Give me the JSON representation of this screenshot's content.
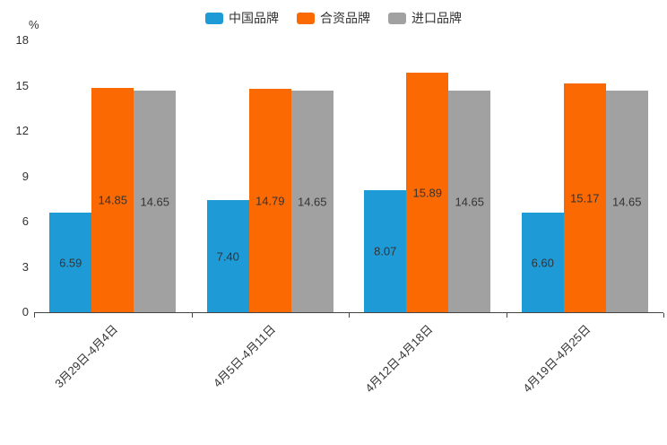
{
  "chart_data": {
    "type": "bar",
    "categories": [
      "3月29日-4月4日",
      "4月5日-4月11日",
      "4月12日-4月18日",
      "4月19日-4月25日"
    ],
    "series": [
      {
        "name": "中国品牌",
        "color": "#1E9BD7",
        "values": [
          6.59,
          7.4,
          8.07,
          6.6
        ]
      },
      {
        "name": "合资品牌",
        "color": "#FB6A02",
        "values": [
          14.85,
          14.79,
          15.89,
          15.17
        ]
      },
      {
        "name": "进口品牌",
        "color": "#A1A1A1",
        "values": [
          14.65,
          14.65,
          14.65,
          14.65
        ]
      }
    ],
    "title": "",
    "xlabel": "",
    "ylabel": "%",
    "ylim": [
      0,
      18
    ],
    "yticks": [
      0,
      3,
      6,
      9,
      12,
      15,
      18
    ],
    "grid": false,
    "legend_position": "top",
    "value_labels": "inside-center",
    "text_color": "#333333",
    "axis_color": "#444444"
  }
}
